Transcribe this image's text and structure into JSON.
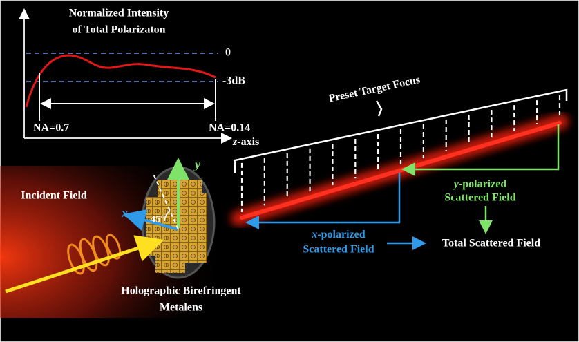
{
  "inset_plot": {
    "title": [
      "Normalized Intensity",
      "of Total Polarizaton"
    ],
    "levels": [
      "0",
      "-3dB"
    ],
    "range_labels": [
      "NA=0.7",
      "NA=0.14"
    ],
    "axis_label": {
      "var": "z",
      "suffix": "-axis"
    }
  },
  "focus": {
    "label": "Preset Target Focus"
  },
  "metalens": {
    "incident": "Incident Field",
    "axis_x": "x",
    "axis_y": "y",
    "angle": "45°",
    "caption": [
      "Holographic Birefringent",
      "Metalens"
    ]
  },
  "fields": {
    "y_polarized": {
      "var": "y",
      "suffix": "-polarized",
      "line2": "Scattered Field"
    },
    "x_polarized": {
      "var": "x",
      "suffix": "-polarized",
      "line2": "Scattered Field"
    },
    "total": "Total Scattered Field"
  }
}
